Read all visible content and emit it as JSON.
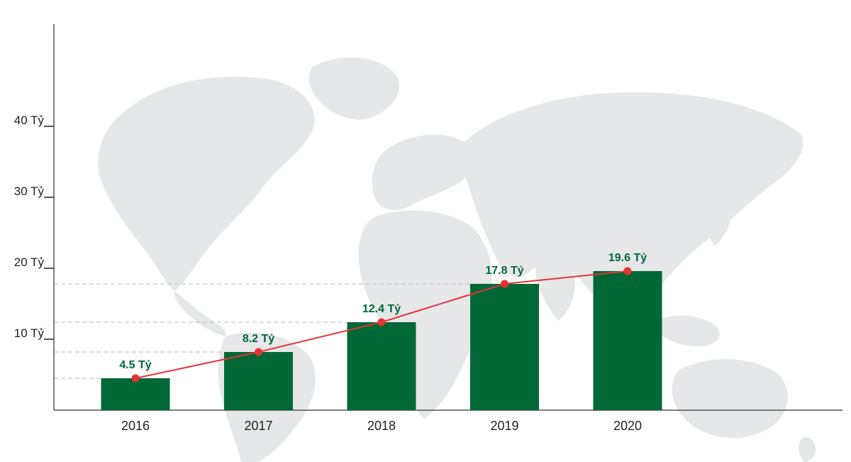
{
  "chart_data": {
    "type": "bar",
    "categories": [
      "2016",
      "2017",
      "2018",
      "2019",
      "2020"
    ],
    "values": [
      4.5,
      8.2,
      12.4,
      17.8,
      19.6
    ],
    "data_labels": [
      "4.5 Tỷ",
      "8.2 Tỷ",
      "12.4 Tỷ",
      "17.8 Tỷ",
      "19.6 Tỷ"
    ],
    "y_ticks": [
      10,
      20,
      30,
      40
    ],
    "y_tick_labels": [
      "10 Tỷ",
      "20 Tỷ",
      "30 Tỷ",
      "40 Tỷ"
    ],
    "ylim": [
      0,
      45
    ],
    "overlay_line": true,
    "grid": false,
    "legend": "none",
    "title": "",
    "xlabel": "",
    "ylabel": ""
  },
  "colors": {
    "bar": "#006837",
    "line": "#e63333",
    "marker": "#e63333",
    "data_label": "#006837",
    "axis": "#555555",
    "guide": "#b8b8b8",
    "map": "#e6e7e9"
  },
  "background_icon": "world-map-icon"
}
